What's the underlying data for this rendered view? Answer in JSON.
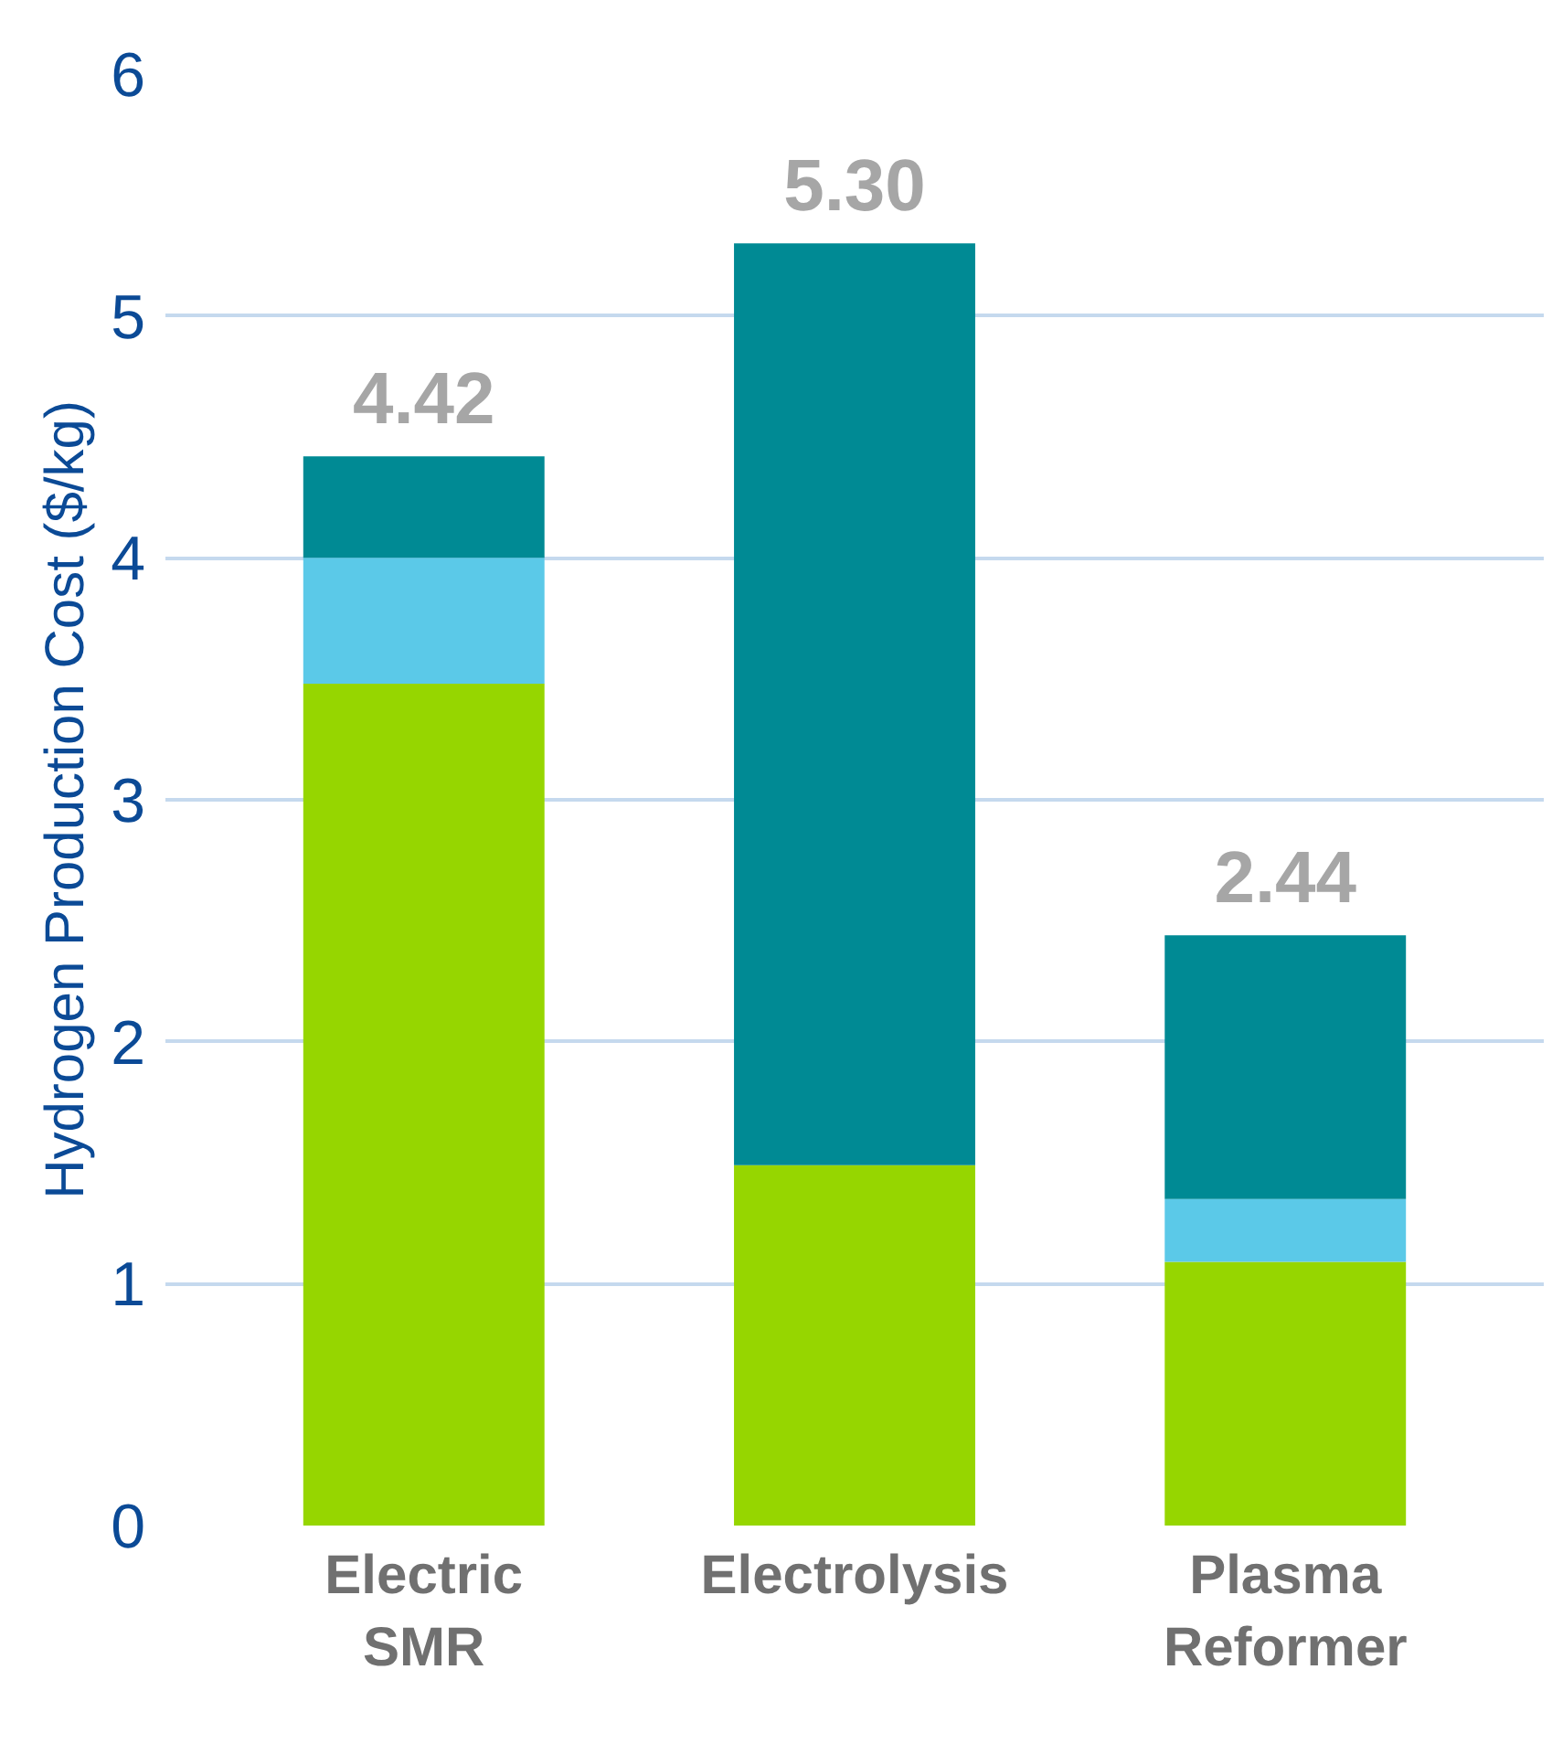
{
  "chart_data": {
    "type": "bar",
    "stacked": true,
    "ylabel": "Hydrogen Production Cost ($/kg)",
    "categories": [
      "Electric\nSMR",
      "Electrolysis",
      "Plasma\nReformer"
    ],
    "series": [
      {
        "color": "#96d600",
        "values": [
          3.48,
          1.49,
          1.09
        ]
      },
      {
        "color": "#5bc9e8",
        "values": [
          0.52,
          null,
          0.26
        ]
      },
      {
        "color": "#008a94",
        "values": [
          0.42,
          3.81,
          1.09
        ]
      }
    ],
    "totals": [
      "4.42",
      "5.30",
      "2.44"
    ],
    "ylim": [
      0,
      6
    ],
    "yticks": [
      0,
      1,
      2,
      3,
      4,
      5,
      6
    ],
    "grid": "y"
  }
}
